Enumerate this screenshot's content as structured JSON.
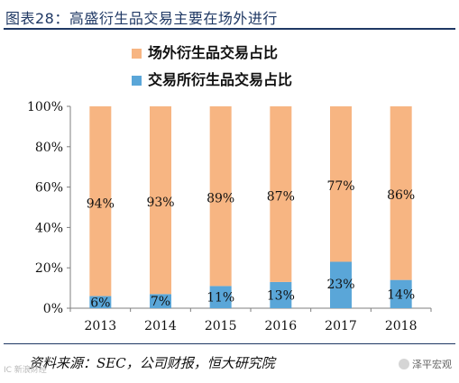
{
  "header": {
    "title": "图表28：高盛衍生品交易主要在场外进行"
  },
  "footer": {
    "source": "资料来源：SEC，公司财报，恒大研究院",
    "watermark_left": "IC 新浪财经",
    "watermark_right": "泽平宏观"
  },
  "colors": {
    "otc": "#f7b582",
    "exchange": "#5aa6d8",
    "title": "#1f3864"
  },
  "chart_data": {
    "type": "bar",
    "stacked": true,
    "categories": [
      "2013",
      "2014",
      "2015",
      "2016",
      "2017",
      "2018"
    ],
    "series": [
      {
        "name": "交易所衍生品交易占比",
        "values": [
          6,
          7,
          11,
          13,
          23,
          14
        ],
        "labels": [
          "6%",
          "7%",
          "11%",
          "13%",
          "23%",
          "14%"
        ]
      },
      {
        "name": "场外衍生品交易占比",
        "values": [
          94,
          93,
          89,
          87,
          77,
          86
        ],
        "labels": [
          "94%",
          "93%",
          "89%",
          "87%",
          "77%",
          "86%"
        ]
      }
    ],
    "legend_order": [
      "场外衍生品交易占比",
      "交易所衍生品交易占比"
    ],
    "legend_position": "top",
    "ylim": [
      0,
      100
    ],
    "yticks": [
      0,
      20,
      40,
      60,
      80,
      100
    ],
    "ytick_labels": [
      "0%",
      "20%",
      "40%",
      "60%",
      "80%",
      "100%"
    ],
    "grid": false
  }
}
